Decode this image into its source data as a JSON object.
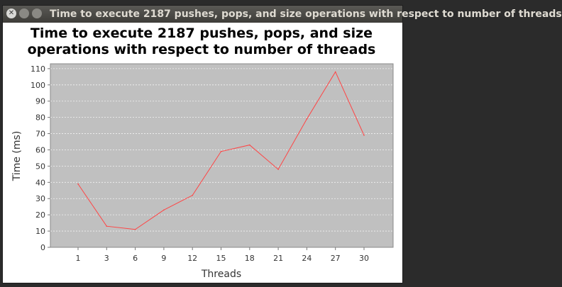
{
  "window": {
    "title": "Time to execute 2187 pushes, pops, and size operations with respect to number of threads"
  },
  "chart_data": {
    "type": "line",
    "title_lines": [
      "Time to execute 2187 pushes, pops, and size",
      "operations with respect to number of threads"
    ],
    "xlabel": "Threads",
    "ylabel": "Time (ms)",
    "x": [
      1,
      3,
      6,
      9,
      12,
      15,
      18,
      21,
      24,
      27,
      30
    ],
    "series": [
      {
        "name": "",
        "values": [
          39,
          13,
          11,
          23,
          32,
          59,
          63,
          48,
          79,
          108,
          69
        ],
        "color": "#ff4444"
      }
    ],
    "ylim": [
      0,
      113
    ],
    "yticks": [
      0,
      10,
      20,
      30,
      40,
      50,
      60,
      70,
      80,
      90,
      100,
      110
    ],
    "xticks": [
      1,
      3,
      6,
      9,
      12,
      15,
      18,
      21,
      24,
      27,
      30
    ],
    "grid": true,
    "plot_background": "#c0c0c0"
  }
}
